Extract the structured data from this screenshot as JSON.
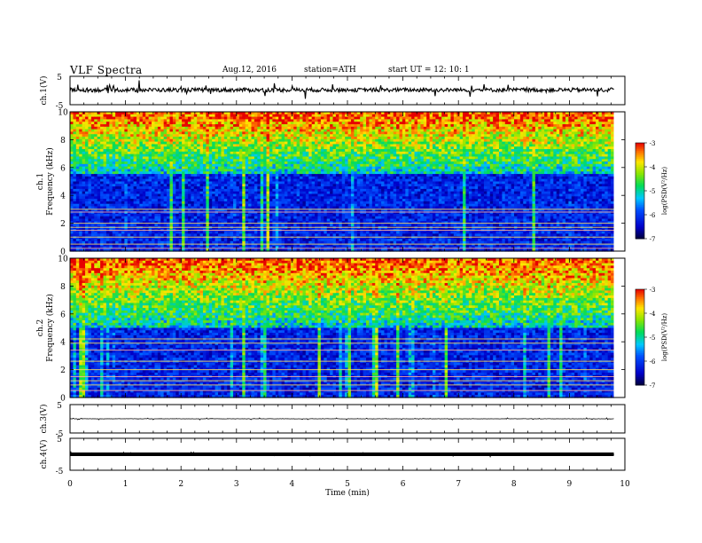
{
  "header": {
    "title": "VLF  Spectra",
    "date": "Aug.12, 2016",
    "station": "station=ATH",
    "start": "start  UT  =    12: 10: 1"
  },
  "chart_data": {
    "type": "heatmap",
    "xlabel": "Time  (min)",
    "xlim": [
      0,
      10
    ],
    "x_ticks": [
      "0",
      "1",
      "2",
      "3",
      "4",
      "5",
      "6",
      "7",
      "8",
      "9",
      "10"
    ],
    "data_extent_min": 9.8,
    "panels": [
      {
        "id": "ch1-waveform",
        "type": "line",
        "ylabel": "ch.1(V)",
        "ylim": [
          -5,
          5
        ],
        "y_ticks": [
          "5",
          "-5"
        ],
        "mean": 0.2,
        "noise_amplitude": 0.7,
        "spike_amplitude": 2.8
      },
      {
        "id": "ch1-spectrogram",
        "type": "heatmap",
        "ylabel": "ch.1\nFrequency  (kHz)",
        "ylabel_channel": "ch.1",
        "ylabel_axis": "Frequency  (kHz)",
        "ylim": [
          0,
          10
        ],
        "y_ticks": [
          "0",
          "2",
          "4",
          "6",
          "8",
          "10"
        ],
        "colorbar": {
          "label": "log(PSD(V²/Hz)",
          "range": [
            -7,
            -3
          ],
          "ticks": [
            "-3",
            "-4",
            "-5",
            "-6",
            "-7"
          ]
        },
        "low_band_top_khz": 5.5,
        "lines_khz": [
          0.2,
          0.5,
          1.0,
          1.5,
          1.7,
          2.0,
          2.8,
          3.0
        ]
      },
      {
        "id": "ch2-spectrogram",
        "type": "heatmap",
        "ylabel": "ch.2\nFrequency  (kHz)",
        "ylabel_channel": "ch.2",
        "ylabel_axis": "Frequency  (kHz)",
        "ylim": [
          0,
          10
        ],
        "y_ticks": [
          "0",
          "2",
          "4",
          "6",
          "8",
          "10"
        ],
        "colorbar": {
          "label": "log(PSD(V²/Hz)",
          "range": [
            -7,
            -3
          ],
          "ticks": [
            "-3",
            "-4",
            "-5",
            "-6",
            "-7"
          ]
        },
        "low_band_top_khz": 5.0,
        "lines_khz": [
          0.5,
          0.9,
          1.2,
          1.5,
          2.0,
          2.6,
          3.4,
          3.9,
          4.2
        ]
      },
      {
        "id": "ch3-waveform",
        "type": "line",
        "ylabel": "ch.3(V)",
        "ylim": [
          -5,
          5
        ],
        "y_ticks": [
          "5",
          "-5"
        ],
        "mean": 0.0,
        "noise_amplitude": 0.05,
        "spike_amplitude": 0.4
      },
      {
        "id": "ch4-waveform",
        "type": "line",
        "ylabel": "ch.4(V)",
        "ylim": [
          -5,
          5
        ],
        "y_ticks": [
          "5",
          "-5"
        ],
        "mean": 0.0,
        "noise_amplitude": 0.25,
        "spike_amplitude": 0.5
      }
    ]
  }
}
